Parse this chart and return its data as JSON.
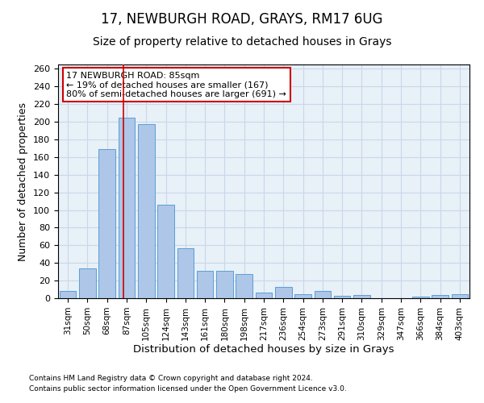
{
  "title1": "17, NEWBURGH ROAD, GRAYS, RM17 6UG",
  "title2": "Size of property relative to detached houses in Grays",
  "xlabel": "Distribution of detached houses by size in Grays",
  "ylabel": "Number of detached properties",
  "categories": [
    "31sqm",
    "50sqm",
    "68sqm",
    "87sqm",
    "105sqm",
    "124sqm",
    "143sqm",
    "161sqm",
    "180sqm",
    "198sqm",
    "217sqm",
    "236sqm",
    "254sqm",
    "273sqm",
    "291sqm",
    "310sqm",
    "329sqm",
    "347sqm",
    "366sqm",
    "384sqm",
    "403sqm"
  ],
  "values": [
    8,
    34,
    169,
    205,
    197,
    106,
    57,
    31,
    31,
    27,
    6,
    13,
    5,
    8,
    3,
    4,
    0,
    0,
    2,
    4,
    5
  ],
  "bar_color": "#aec6e8",
  "bar_edge_color": "#5a9fd4",
  "grid_color": "#c8d8e8",
  "background_color": "#e8f0f8",
  "vline_color": "#cc0000",
  "vline_x": 2.82,
  "annotation_line1": "17 NEWBURGH ROAD: 85sqm",
  "annotation_line2": "← 19% of detached houses are smaller (167)",
  "annotation_line3": "80% of semi-detached houses are larger (691) →",
  "footer1": "Contains HM Land Registry data © Crown copyright and database right 2024.",
  "footer2": "Contains public sector information licensed under the Open Government Licence v3.0.",
  "ylim": [
    0,
    265
  ],
  "yticks": [
    0,
    20,
    40,
    60,
    80,
    100,
    120,
    140,
    160,
    180,
    200,
    220,
    240,
    260
  ]
}
